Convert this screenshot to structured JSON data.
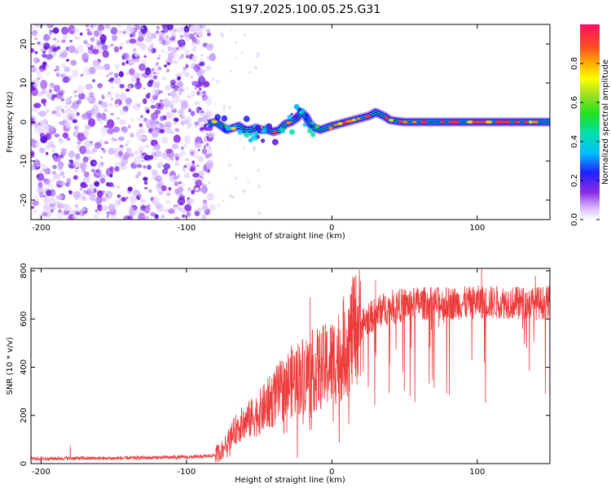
{
  "title": "S197.2025.100.05.25.G31",
  "spectrogram": {
    "type": "heatmap",
    "xlabel": "Height of straight line (km)",
    "ylabel": "Frequency (Hz)",
    "xlim": [
      -207,
      150
    ],
    "ylim": [
      -25,
      25
    ],
    "xticks": [
      -200,
      -100,
      0,
      100
    ],
    "xtick_labels": [
      "-200",
      "-100",
      "0",
      "100"
    ],
    "yticks": [
      -20,
      -10,
      0,
      10,
      20
    ],
    "ytick_labels": [
      "-20",
      "-10",
      "0",
      "10",
      "20"
    ],
    "noise_region_x": [
      -207,
      -82
    ],
    "trace": {
      "x": [
        -85,
        -80,
        -76,
        -72,
        -68,
        -64,
        -60,
        -56,
        -52,
        -48,
        -44,
        -40,
        -36,
        -32,
        -28,
        -24,
        -21,
        -18,
        -15,
        -12,
        -8,
        -4,
        0,
        5,
        10,
        15,
        20,
        25,
        28,
        30,
        33,
        36,
        40,
        45,
        50,
        60,
        70,
        80,
        90,
        100,
        110,
        120,
        130,
        140,
        150
      ],
      "y": [
        -0.5,
        0,
        -1,
        -2,
        -1.5,
        -1,
        -2,
        -2,
        -1.5,
        -2,
        -2,
        -2.5,
        -2,
        -0.5,
        0,
        1,
        2.5,
        1.5,
        -0.5,
        -1.5,
        -2,
        -1.5,
        -1,
        -0.5,
        0,
        0.5,
        1,
        1.5,
        2,
        2.5,
        2,
        1.5,
        0.5,
        0.2,
        0,
        0,
        0,
        0,
        0,
        0,
        0,
        0,
        0,
        0,
        0
      ]
    },
    "colorbar": {
      "label": "Normalized spectral amplitude",
      "range": [
        0,
        1
      ],
      "ticks": [
        0,
        0.2,
        0.4,
        0.6,
        0.8
      ],
      "tick_labels": [
        "0.0",
        "0.2",
        "0.4",
        "0.6",
        "0.8"
      ]
    }
  },
  "snr": {
    "type": "line",
    "xlabel": "Height of straight line (km)",
    "ylabel": "SNR (10 * v/v)",
    "xlim": [
      -207,
      150
    ],
    "ylim": [
      0,
      810
    ],
    "xticks": [
      -200,
      -100,
      0,
      100
    ],
    "xtick_labels": [
      "-200",
      "-100",
      "0",
      "100"
    ],
    "yticks": [
      0,
      200,
      400,
      600,
      800
    ],
    "ytick_labels": [
      "0",
      "200",
      "400",
      "600",
      "800"
    ],
    "color": "#ee3b3b",
    "envelope": {
      "x": [
        -207,
        -180,
        -150,
        -120,
        -90,
        -80,
        -75,
        -70,
        -65,
        -60,
        -55,
        -50,
        -45,
        -40,
        -35,
        -30,
        -25,
        -20,
        -15,
        -10,
        -5,
        0,
        5,
        10,
        15,
        20,
        25,
        30,
        35,
        40,
        50,
        60,
        70,
        80,
        90,
        100,
        110,
        120,
        130,
        140,
        150
      ],
      "y": [
        20,
        22,
        22,
        25,
        28,
        35,
        60,
        110,
        150,
        170,
        190,
        210,
        240,
        270,
        300,
        330,
        350,
        370,
        380,
        390,
        400,
        420,
        450,
        500,
        540,
        580,
        600,
        620,
        640,
        650,
        660,
        665,
        665,
        665,
        665,
        670,
        670,
        670,
        665,
        665,
        670
      ]
    },
    "spikes": [
      {
        "x": -180,
        "y": 75
      },
      {
        "x": -15,
        "y": 690
      },
      {
        "x": 30,
        "y": 760
      },
      {
        "x": 103,
        "y": 810
      },
      {
        "x": 140,
        "y": 780
      }
    ]
  }
}
